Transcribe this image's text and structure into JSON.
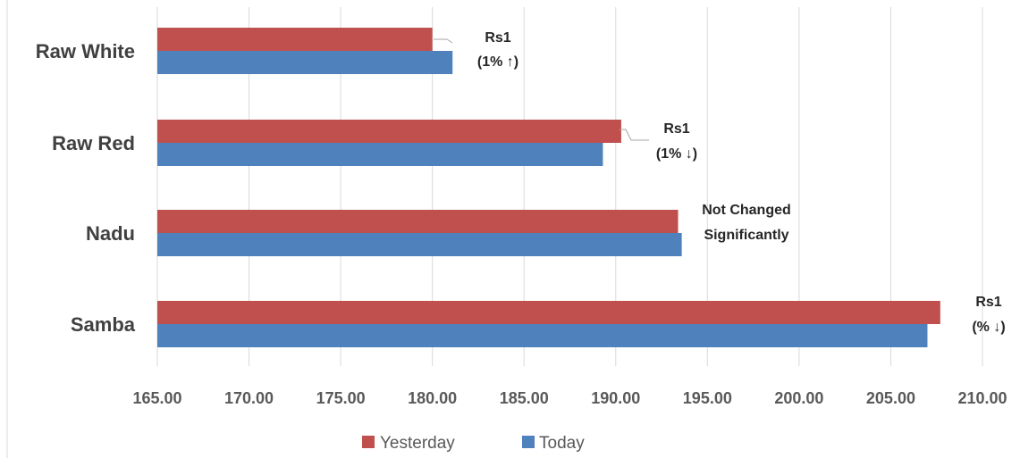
{
  "chart_data": {
    "type": "bar",
    "orientation": "horizontal",
    "title": "",
    "xlabel": "",
    "ylabel": "",
    "categories": [
      "Raw White",
      "Raw Red",
      "Nadu",
      "Samba"
    ],
    "series": [
      {
        "name": "Yesterday",
        "color": "#c0504d",
        "values": [
          180.0,
          190.3,
          193.4,
          207.7
        ]
      },
      {
        "name": "Today",
        "color": "#4f81bd",
        "values": [
          181.1,
          189.3,
          193.6,
          207.0
        ]
      }
    ],
    "xlim": [
      165,
      210
    ],
    "x_ticks": [
      "165.00",
      "170.00",
      "175.00",
      "180.00",
      "185.00",
      "190.00",
      "195.00",
      "200.00",
      "205.00",
      "210.00"
    ],
    "grid": "vertical",
    "legend": "bottom",
    "annotations": [
      {
        "category": "Raw White",
        "line1": "Rs1",
        "line2": "(1% ↑)"
      },
      {
        "category": "Raw Red",
        "line1": "Rs1",
        "line2": "(1% ↓)"
      },
      {
        "category": "Nadu",
        "line1": "Not Changed",
        "line2": "Significantly"
      },
      {
        "category": "Samba",
        "line1": "Rs1",
        "line2": "(% ↓)"
      }
    ]
  }
}
